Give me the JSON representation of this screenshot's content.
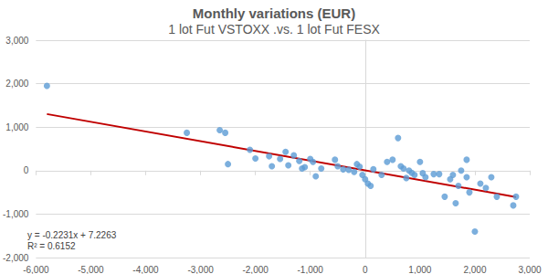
{
  "chart_data": {
    "type": "scatter",
    "title": "Monthly variations (EUR)",
    "subtitle": "1 lot Fut VSTOXX .vs. 1 lot Fut FESX",
    "annotations": [
      "y = -0.2231x + 7.2263",
      "R² = 0.6152"
    ],
    "xlim": [
      -6000,
      3000
    ],
    "xticks": [
      {
        "value": -6000,
        "label": "-6,000"
      },
      {
        "value": -5000,
        "label": "-5,000"
      },
      {
        "value": -4000,
        "label": "-4,000"
      },
      {
        "value": -3000,
        "label": "-3,000"
      },
      {
        "value": -2000,
        "label": "-2,000"
      },
      {
        "value": -1000,
        "label": "-1,000"
      },
      0,
      {
        "value": 1000,
        "label": "1,000"
      },
      {
        "value": 2000,
        "label": "2,000"
      },
      {
        "value": 3000,
        "label": "3,000"
      }
    ],
    "ylim": [
      -2000,
      3000
    ],
    "yticks": [
      {
        "value": -2000,
        "label": "-2,000"
      },
      {
        "value": -1000,
        "label": "-1,000"
      },
      0,
      {
        "value": 1000,
        "label": "1,000"
      },
      {
        "value": 2000,
        "label": "2,000"
      },
      {
        "value": 3000,
        "label": "3,000"
      }
    ],
    "grid": true,
    "series": [
      {
        "type": "scatter",
        "color": "#5b9bd5",
        "marker": "circle",
        "x": [
          -5800,
          -3250,
          -2650,
          -2550,
          -2500,
          -2100,
          -2000,
          -1750,
          -1700,
          -1550,
          -1450,
          -1400,
          -1300,
          -1200,
          -1150,
          -1100,
          -1000,
          -950,
          -900,
          -800,
          -550,
          -500,
          -400,
          -300,
          -200,
          -150,
          -100,
          -50,
          0,
          50,
          100,
          150,
          300,
          400,
          500,
          650,
          600,
          700,
          750,
          800,
          850,
          900,
          1000,
          1050,
          1100,
          1250,
          1350,
          1450,
          1550,
          1650,
          1700,
          1750,
          1850,
          1850,
          1900,
          2000,
          2100,
          2200,
          2300,
          2400,
          2700,
          2750,
          1600
        ],
        "values": [
          1950,
          870,
          930,
          870,
          150,
          480,
          280,
          330,
          100,
          270,
          430,
          120,
          350,
          220,
          50,
          80,
          270,
          200,
          -130,
          50,
          250,
          100,
          30,
          20,
          -30,
          150,
          90,
          -100,
          -200,
          -300,
          -350,
          30,
          -100,
          200,
          250,
          100,
          750,
          50,
          -170,
          0,
          -50,
          -100,
          200,
          -60,
          -150,
          -80,
          -80,
          -600,
          -200,
          -750,
          -350,
          0,
          250,
          -150,
          -500,
          -1400,
          -300,
          -400,
          -150,
          -600,
          -800,
          -600,
          -100
        ]
      },
      {
        "type": "line",
        "color": "#c00000",
        "line_style": "solid",
        "x": [
          -5800,
          2750
        ],
        "values": [
          1301,
          -606
        ]
      }
    ]
  }
}
